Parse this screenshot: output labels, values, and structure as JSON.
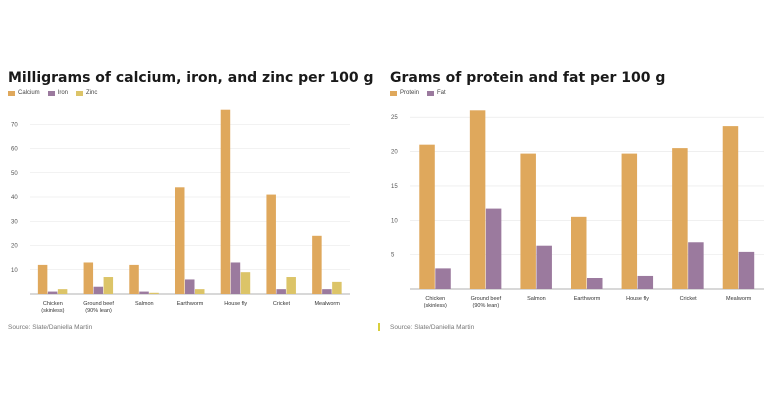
{
  "chart_data": [
    {
      "type": "bar",
      "title": "Milligrams of calcium, iron, and zinc per 100 g",
      "categories": [
        "Chicken (skinless)",
        "Ground beef (90% lean)",
        "Salmon",
        "Earthworm",
        "House fly",
        "Cricket",
        "Mealworm"
      ],
      "series": [
        {
          "name": "Calcium",
          "color": "#dfa85c",
          "values": [
            12,
            13,
            12,
            44,
            76,
            41,
            24
          ]
        },
        {
          "name": "Iron",
          "color": "#9b7a9e",
          "values": [
            1,
            3,
            1,
            6,
            13,
            2,
            2
          ]
        },
        {
          "name": "Zinc",
          "color": "#dcc468",
          "values": [
            2,
            7,
            0.5,
            2,
            9,
            7,
            5
          ]
        }
      ],
      "yticks": [
        10,
        20,
        30,
        40,
        50,
        60,
        70
      ],
      "ylim": [
        0,
        80
      ],
      "grid": true,
      "legend": "top-left",
      "source": "Source: Slate/Daniella Martin"
    },
    {
      "type": "bar",
      "title": "Grams of protein and fat per 100 g",
      "categories": [
        "Chicken (skinless)",
        "Ground beef (90% lean)",
        "Salmon",
        "Earthworm",
        "House fly",
        "Cricket",
        "Mealworm"
      ],
      "series": [
        {
          "name": "Protein",
          "color": "#dfa85c",
          "values": [
            21,
            26,
            19.7,
            10.5,
            19.7,
            20.5,
            23.7
          ]
        },
        {
          "name": "Fat",
          "color": "#9b7a9e",
          "values": [
            3,
            11.7,
            6.3,
            1.6,
            1.9,
            6.8,
            5.4
          ]
        }
      ],
      "yticks": [
        5,
        10,
        15,
        20,
        25
      ],
      "ylim": [
        0,
        27.5
      ],
      "grid": true,
      "legend": "top-left",
      "source": "Source: Slate/Daniella Martin"
    }
  ]
}
